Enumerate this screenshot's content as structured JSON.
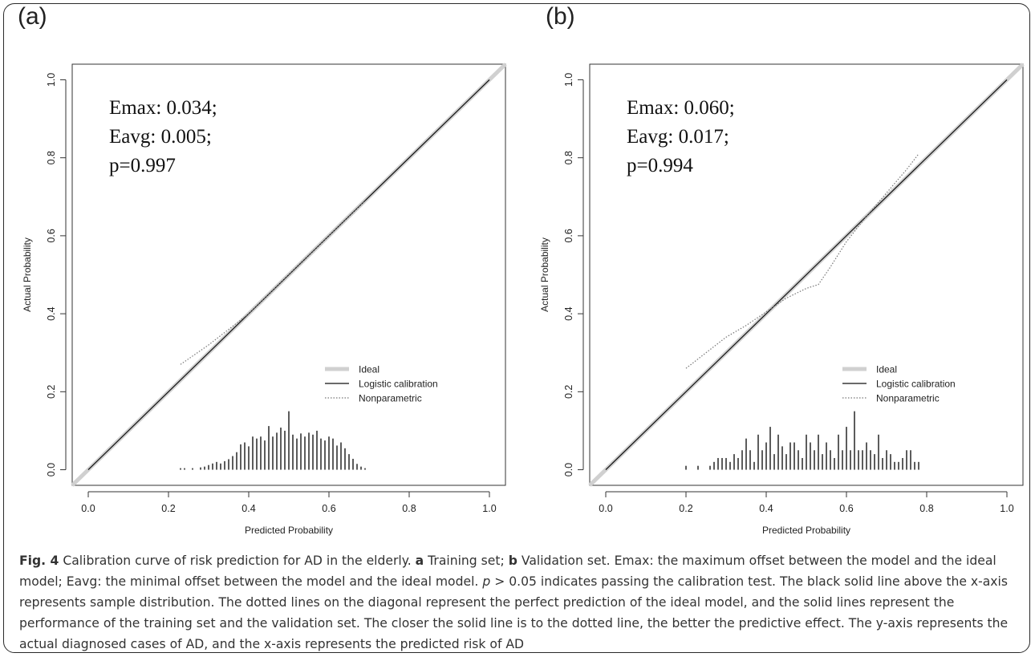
{
  "figure": {
    "caption": {
      "fig_label": "Fig. 4",
      "lead": "Calibration curve of risk prediction for AD in the elderly.",
      "label_a": "a",
      "text_a": "Training set;",
      "label_b": "b",
      "text_b": "Validation set. Emax: the maximum offset between the model and the ideal model; Eavg: the minimal offset between the model and the ideal model.",
      "p_symbol": "p",
      "rest": "> 0.05 indicates passing the calibration test. The black solid line above the x-axis represents sample distribution. The dotted lines on the diagonal represent the perfect prediction of the ideal model, and the solid lines represent the performance of the training set and the validation set. The closer the solid line is to the dotted line, the better the predictive effect. The y-axis represents the actual diagnosed cases of AD, and the x-axis represents the predicted risk of AD"
    }
  },
  "colors": {
    "ideal": "#d0d0d0",
    "logistic": "#111111",
    "nonparametric": "#777777",
    "axis": "#333333"
  },
  "chart_data": [
    {
      "type": "line",
      "panel_label": "(a)",
      "xlabel": "Predicted Probability",
      "ylabel": "Actual Probability",
      "xlim": [
        -0.04,
        1.04
      ],
      "ylim": [
        -0.04,
        1.04
      ],
      "xticks": [
        "0.0",
        "0.2",
        "0.4",
        "0.6",
        "0.8",
        "1.0"
      ],
      "yticks": [
        "0.0",
        "0.2",
        "0.4",
        "0.6",
        "0.8",
        "1.0"
      ],
      "annotation": [
        "Emax: 0.034;",
        "Eavg: 0.005;",
        "p=0.997"
      ],
      "legend": {
        "placement": "bottom-right",
        "entries": [
          "Ideal",
          "Logistic calibration",
          "Nonparametric"
        ]
      },
      "series": [
        {
          "name": "Ideal",
          "x": [
            -0.04,
            1.04
          ],
          "y": [
            -0.04,
            1.04
          ]
        },
        {
          "name": "Logistic calibration",
          "x": [
            0,
            1
          ],
          "y": [
            0,
            1
          ]
        },
        {
          "name": "Nonparametric",
          "x": [
            0.23,
            0.3,
            0.35,
            0.4,
            0.45,
            0.5,
            0.55,
            0.6,
            0.65,
            0.69
          ],
          "y": [
            0.27,
            0.32,
            0.36,
            0.4,
            0.45,
            0.5,
            0.55,
            0.6,
            0.65,
            0.69
          ]
        }
      ],
      "distribution": {
        "x": [
          0.23,
          0.24,
          0.26,
          0.28,
          0.29,
          0.3,
          0.31,
          0.32,
          0.33,
          0.34,
          0.35,
          0.36,
          0.37,
          0.38,
          0.39,
          0.4,
          0.41,
          0.42,
          0.43,
          0.44,
          0.45,
          0.46,
          0.47,
          0.48,
          0.49,
          0.5,
          0.51,
          0.52,
          0.53,
          0.54,
          0.55,
          0.56,
          0.57,
          0.58,
          0.59,
          0.6,
          0.61,
          0.62,
          0.63,
          0.64,
          0.65,
          0.66,
          0.67,
          0.68,
          0.69
        ],
        "h": [
          0.004,
          0.004,
          0.004,
          0.006,
          0.008,
          0.012,
          0.016,
          0.02,
          0.016,
          0.022,
          0.027,
          0.035,
          0.045,
          0.065,
          0.07,
          0.06,
          0.085,
          0.08,
          0.085,
          0.075,
          0.112,
          0.085,
          0.095,
          0.108,
          0.1,
          0.15,
          0.09,
          0.08,
          0.093,
          0.085,
          0.095,
          0.09,
          0.1,
          0.08,
          0.075,
          0.085,
          0.08,
          0.062,
          0.07,
          0.055,
          0.04,
          0.028,
          0.015,
          0.008,
          0.004
        ]
      }
    },
    {
      "type": "line",
      "panel_label": "(b)",
      "xlabel": "Predicted Probability",
      "ylabel": "Actual Probability",
      "xlim": [
        -0.04,
        1.04
      ],
      "ylim": [
        -0.04,
        1.04
      ],
      "xticks": [
        "0.0",
        "0.2",
        "0.4",
        "0.6",
        "0.8",
        "1.0"
      ],
      "yticks": [
        "0.0",
        "0.2",
        "0.4",
        "0.6",
        "0.8",
        "1.0"
      ],
      "annotation": [
        "Emax: 0.060;",
        "Eavg: 0.017;",
        "p=0.994"
      ],
      "legend": {
        "placement": "bottom-right",
        "entries": [
          "Ideal",
          "Logistic calibration",
          "Nonparametric"
        ]
      },
      "series": [
        {
          "name": "Ideal",
          "x": [
            -0.04,
            1.04
          ],
          "y": [
            -0.04,
            1.04
          ]
        },
        {
          "name": "Logistic calibration",
          "x": [
            0,
            1
          ],
          "y": [
            0,
            1
          ]
        },
        {
          "name": "Nonparametric",
          "x": [
            0.2,
            0.25,
            0.3,
            0.35,
            0.4,
            0.45,
            0.5,
            0.53,
            0.56,
            0.6,
            0.65,
            0.7,
            0.75,
            0.78
          ],
          "y": [
            0.26,
            0.3,
            0.34,
            0.37,
            0.405,
            0.44,
            0.465,
            0.475,
            0.52,
            0.585,
            0.65,
            0.71,
            0.77,
            0.81
          ]
        }
      ],
      "distribution": {
        "x": [
          0.2,
          0.23,
          0.26,
          0.27,
          0.28,
          0.29,
          0.3,
          0.31,
          0.32,
          0.33,
          0.34,
          0.35,
          0.36,
          0.37,
          0.38,
          0.39,
          0.4,
          0.41,
          0.42,
          0.43,
          0.44,
          0.45,
          0.46,
          0.47,
          0.48,
          0.49,
          0.5,
          0.51,
          0.52,
          0.53,
          0.54,
          0.55,
          0.56,
          0.57,
          0.58,
          0.59,
          0.6,
          0.61,
          0.62,
          0.63,
          0.64,
          0.65,
          0.66,
          0.67,
          0.68,
          0.69,
          0.7,
          0.71,
          0.72,
          0.73,
          0.74,
          0.75,
          0.76,
          0.77,
          0.78
        ],
        "h": [
          0.01,
          0.01,
          0.01,
          0.02,
          0.03,
          0.03,
          0.03,
          0.02,
          0.04,
          0.03,
          0.05,
          0.08,
          0.05,
          0.02,
          0.09,
          0.05,
          0.07,
          0.11,
          0.04,
          0.09,
          0.06,
          0.04,
          0.07,
          0.07,
          0.05,
          0.03,
          0.09,
          0.07,
          0.05,
          0.09,
          0.04,
          0.07,
          0.05,
          0.03,
          0.09,
          0.05,
          0.11,
          0.05,
          0.15,
          0.05,
          0.05,
          0.07,
          0.05,
          0.04,
          0.09,
          0.03,
          0.05,
          0.04,
          0.02,
          0.02,
          0.03,
          0.05,
          0.05,
          0.02,
          0.02
        ]
      }
    }
  ]
}
